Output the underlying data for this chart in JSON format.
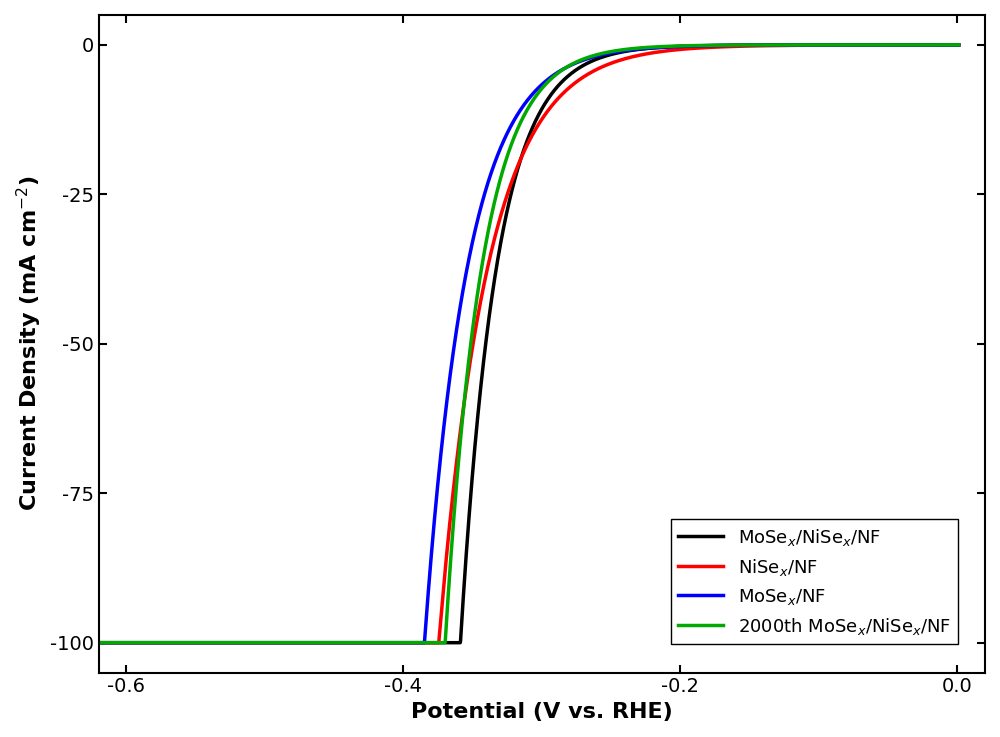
{
  "xlabel": "Potential (V vs. RHE)",
  "ylabel": "Current Density (mA cm$^{-2}$)",
  "xlim": [
    -0.62,
    0.02
  ],
  "ylim": [
    -105,
    5
  ],
  "xticks": [
    -0.6,
    -0.4,
    -0.2,
    0.0
  ],
  "yticks": [
    0,
    -25,
    -50,
    -75,
    -100
  ],
  "curves": [
    {
      "label": "MoSe$_x$/NiSe$_x$/NF",
      "color": "#000000",
      "j0": 0.00012,
      "alpha": 38.0
    },
    {
      "label": "NiSe$_x$/NF",
      "color": "#ff0000",
      "j0": 0.0028,
      "alpha": 28.0
    },
    {
      "label": "MoSe$_x$/NF",
      "color": "#0000ff",
      "j0": 0.00045,
      "alpha": 32.0
    },
    {
      "label": "2000th MoSe$_x$/NiSe$_x$/NF",
      "color": "#00aa00",
      "j0": 9.5e-05,
      "alpha": 37.5
    }
  ],
  "linewidth": 2.5,
  "background_color": "#ffffff",
  "label_fontsize": 16,
  "tick_fontsize": 14,
  "legend_fontsize": 13
}
